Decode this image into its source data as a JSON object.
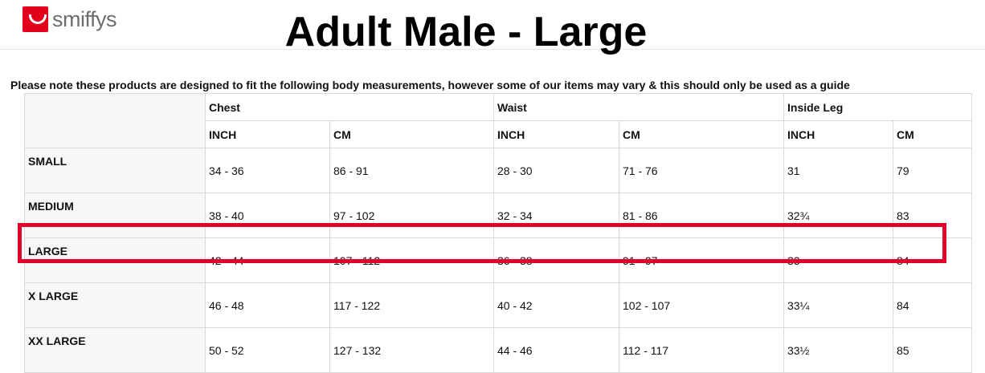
{
  "brand": {
    "name": "smiffys",
    "color": "#e2001a"
  },
  "title": "Adult Male - Large",
  "note": "Please note these products are designed to fit the following body measurements, however some of our items may vary & this should only be used as a guide",
  "table": {
    "groups": [
      "Chest",
      "Waist",
      "Inside Leg"
    ],
    "units": [
      "INCH",
      "CM",
      "INCH",
      "CM",
      "INCH",
      "CM"
    ],
    "rows": [
      {
        "size": "SMALL",
        "values": [
          "34 - 36",
          "86 - 91",
          "28 - 30",
          "71 - 76",
          "31",
          "79"
        ]
      },
      {
        "size": "MEDIUM",
        "values": [
          "38 - 40",
          "97 - 102",
          "32 - 34",
          "81 - 86",
          "32¾",
          "83"
        ]
      },
      {
        "size": "LARGE",
        "values": [
          "42 - 44",
          "107 - 112",
          "36 - 38",
          "91 - 97",
          "33",
          "84"
        ]
      },
      {
        "size": "X LARGE",
        "values": [
          "46 - 48",
          "117 - 122",
          "40 - 42",
          "102 - 107",
          "33¼",
          "84"
        ]
      },
      {
        "size": "XX LARGE",
        "values": [
          "50 - 52",
          "127 - 132",
          "44 - 46",
          "112 - 117",
          "33½",
          "85"
        ]
      }
    ],
    "highlighted_size": "LARGE",
    "highlight_color": "#e0002a"
  }
}
